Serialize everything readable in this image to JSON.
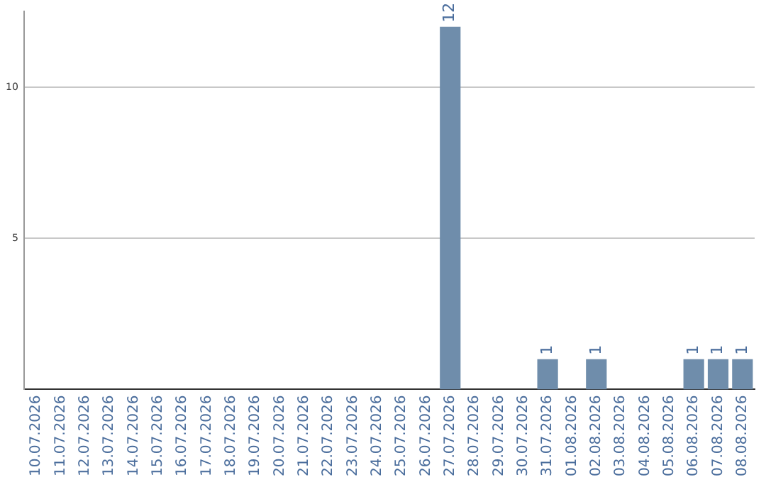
{
  "chart_data": {
    "type": "bar",
    "categories": [
      "10.07.2026",
      "11.07.2026",
      "12.07.2026",
      "13.07.2026",
      "14.07.2026",
      "15.07.2026",
      "16.07.2026",
      "17.07.2026",
      "18.07.2026",
      "19.07.2026",
      "20.07.2026",
      "21.07.2026",
      "22.07.2026",
      "23.07.2026",
      "24.07.2026",
      "25.07.2026",
      "26.07.2026",
      "27.07.2026",
      "28.07.2026",
      "29.07.2026",
      "30.07.2026",
      "31.07.2026",
      "01.08.2026",
      "02.08.2026",
      "03.08.2026",
      "04.08.2026",
      "05.08.2026",
      "06.08.2026",
      "07.08.2026",
      "08.08.2026"
    ],
    "values": [
      0,
      0,
      0,
      0,
      0,
      0,
      0,
      0,
      0,
      0,
      0,
      0,
      0,
      0,
      0,
      0,
      0,
      12,
      0,
      0,
      0,
      1,
      0,
      1,
      0,
      0,
      0,
      1,
      1,
      1
    ],
    "value_labels": [
      null,
      null,
      null,
      null,
      null,
      null,
      null,
      null,
      null,
      null,
      null,
      null,
      null,
      null,
      null,
      null,
      null,
      "12",
      null,
      null,
      null,
      "1",
      null,
      "1",
      null,
      null,
      null,
      "1",
      "1",
      "1"
    ],
    "color": "#6f8dab",
    "ylim": [
      0,
      12.5
    ],
    "yticks": [
      5,
      10
    ],
    "grid": "y",
    "legend": false
  }
}
